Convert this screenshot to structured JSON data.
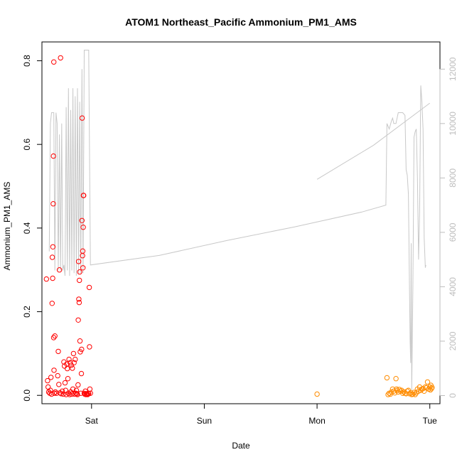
{
  "chart_data": {
    "type": "scatter",
    "title": "ATOM1 Northeast_Pacific Ammonium_PM1_AMS",
    "xlabel": "Date",
    "ylabel": "Ammonium_PM1_AMS",
    "x_ticks": [
      {
        "label": "Sat",
        "value": 1.0
      },
      {
        "label": "Sun",
        "value": 2.0
      },
      {
        "label": "Mon",
        "value": 3.0
      },
      {
        "label": "Tue",
        "value": 4.0
      }
    ],
    "xlim": [
      0.56,
      4.09
    ],
    "ylim": [
      -0.02,
      0.845
    ],
    "y_ticks": [
      0.0,
      0.2,
      0.4,
      0.6,
      0.8
    ],
    "y2lim": [
      -300,
      13000
    ],
    "y2_ticks": [
      0,
      2000,
      4000,
      6000,
      8000,
      10000,
      12000
    ],
    "grid": false,
    "series": [
      {
        "color": "#ff0000",
        "points": [
          [
            0.6,
            0.278
          ],
          [
            0.61,
            0.035
          ],
          [
            0.615,
            0.02
          ],
          [
            0.62,
            0.008
          ],
          [
            0.63,
            0.005
          ],
          [
            0.635,
            0.012
          ],
          [
            0.64,
            0.043
          ],
          [
            0.645,
            0.003
          ],
          [
            0.65,
            0.22
          ],
          [
            0.652,
            0.33
          ],
          [
            0.655,
            0.28
          ],
          [
            0.657,
            0.355
          ],
          [
            0.66,
            0.458
          ],
          [
            0.662,
            0.572
          ],
          [
            0.664,
            0.138
          ],
          [
            0.665,
            0.797
          ],
          [
            0.667,
            0.06
          ],
          [
            0.67,
            0.005
          ],
          [
            0.675,
            0.142
          ],
          [
            0.68,
            0.008
          ],
          [
            0.69,
            0.005
          ],
          [
            0.7,
            0.047
          ],
          [
            0.705,
            0.105
          ],
          [
            0.71,
            0.026
          ],
          [
            0.715,
            0.3
          ],
          [
            0.72,
            0.006
          ],
          [
            0.725,
            0.807
          ],
          [
            0.73,
            0.004
          ],
          [
            0.74,
            0.01
          ],
          [
            0.75,
            0.003
          ],
          [
            0.755,
            0.08
          ],
          [
            0.76,
            0.07
          ],
          [
            0.765,
            0.03
          ],
          [
            0.77,
            0.012
          ],
          [
            0.775,
            0.002
          ],
          [
            0.78,
            0.075
          ],
          [
            0.785,
            0.064
          ],
          [
            0.79,
            0.04
          ],
          [
            0.795,
            0.005
          ],
          [
            0.8,
            0.086
          ],
          [
            0.805,
            0.002
          ],
          [
            0.81,
            0.078
          ],
          [
            0.815,
            0.008
          ],
          [
            0.82,
            0.072
          ],
          [
            0.825,
            0.003
          ],
          [
            0.83,
            0.065
          ],
          [
            0.835,
            0.015
          ],
          [
            0.84,
            0.1
          ],
          [
            0.845,
            0.078
          ],
          [
            0.85,
            0.003
          ],
          [
            0.855,
            0.086
          ],
          [
            0.86,
            0.005
          ],
          [
            0.865,
            0.012
          ],
          [
            0.87,
            0.004
          ],
          [
            0.875,
            0.002
          ],
          [
            0.88,
            0.025
          ],
          [
            0.882,
            0.18
          ],
          [
            0.885,
            0.32
          ],
          [
            0.887,
            0.23
          ],
          [
            0.89,
            0.222
          ],
          [
            0.892,
            0.275
          ],
          [
            0.895,
            0.295
          ],
          [
            0.897,
            0.13
          ],
          [
            0.9,
            0.104
          ],
          [
            0.905,
            0.005
          ],
          [
            0.91,
            0.052
          ],
          [
            0.912,
            0.11
          ],
          [
            0.915,
            0.418
          ],
          [
            0.917,
            0.663
          ],
          [
            0.92,
            0.334
          ],
          [
            0.922,
            0.345
          ],
          [
            0.924,
            0.305
          ],
          [
            0.926,
            0.402
          ],
          [
            0.928,
            0.478
          ],
          [
            0.93,
            0.478
          ],
          [
            0.935,
            0.005
          ],
          [
            0.94,
            0.003
          ],
          [
            0.945,
            0.01
          ],
          [
            0.95,
            0.002
          ],
          [
            0.955,
            0.004
          ],
          [
            0.96,
            0.003
          ],
          [
            0.965,
            0.002
          ],
          [
            0.97,
            0.005
          ],
          [
            0.975,
            0.004
          ],
          [
            0.98,
            0.258
          ],
          [
            0.982,
            0.116
          ],
          [
            0.985,
            0.015
          ],
          [
            0.99,
            0.005
          ]
        ]
      },
      {
        "color": "#ff8c00",
        "points": [
          [
            3.0,
            0.003
          ],
          [
            3.62,
            0.042
          ],
          [
            3.63,
            0.002
          ],
          [
            3.64,
            0.005
          ],
          [
            3.65,
            0.003
          ],
          [
            3.66,
            0.008
          ],
          [
            3.67,
            0.015
          ],
          [
            3.68,
            0.01
          ],
          [
            3.69,
            0.006
          ],
          [
            3.7,
            0.04
          ],
          [
            3.705,
            0.015
          ],
          [
            3.71,
            0.012
          ],
          [
            3.72,
            0.008
          ],
          [
            3.73,
            0.014
          ],
          [
            3.74,
            0.01
          ],
          [
            3.75,
            0.012
          ],
          [
            3.76,
            0.005
          ],
          [
            3.77,
            0.008
          ],
          [
            3.78,
            0.005
          ],
          [
            3.79,
            0.004
          ],
          [
            3.8,
            0.01
          ],
          [
            3.81,
            0.012
          ],
          [
            3.82,
            0.004
          ],
          [
            3.83,
            0.006
          ],
          [
            3.84,
            0.002
          ],
          [
            3.85,
            0.003
          ],
          [
            3.86,
            0.007
          ],
          [
            3.87,
            0.002
          ],
          [
            3.88,
            0.006
          ],
          [
            3.89,
            0.015
          ],
          [
            3.9,
            0.01
          ],
          [
            3.91,
            0.02
          ],
          [
            3.92,
            0.012
          ],
          [
            3.93,
            0.015
          ],
          [
            3.94,
            0.016
          ],
          [
            3.95,
            0.01
          ],
          [
            3.96,
            0.02
          ],
          [
            3.97,
            0.018
          ],
          [
            3.98,
            0.032
          ],
          [
            3.99,
            0.015
          ],
          [
            4.0,
            0.02
          ],
          [
            4.005,
            0.013
          ],
          [
            4.01,
            0.024
          ],
          [
            4.015,
            0.016
          ],
          [
            4.02,
            0.019
          ]
        ]
      }
    ],
    "secondary_line": {
      "color": "#c8c8c8",
      "segments": [
        [
          [
            0.625,
            5300
          ],
          [
            0.635,
            10000
          ],
          [
            0.645,
            10400
          ],
          [
            0.655,
            10400
          ],
          [
            0.665,
            10400
          ],
          [
            0.675,
            4600
          ],
          [
            0.685,
            10400
          ],
          [
            0.695,
            10000
          ],
          [
            0.705,
            4600
          ],
          [
            0.715,
            9600
          ],
          [
            0.725,
            4600
          ],
          [
            0.735,
            10000
          ],
          [
            0.745,
            4600
          ],
          [
            0.755,
            4800
          ],
          [
            0.765,
            4400
          ],
          [
            0.775,
            10600
          ],
          [
            0.785,
            4600
          ],
          [
            0.795,
            11300
          ],
          [
            0.805,
            4400
          ],
          [
            0.815,
            10500
          ],
          [
            0.825,
            4600
          ],
          [
            0.835,
            11300
          ],
          [
            0.845,
            4500
          ],
          [
            0.855,
            11000
          ],
          [
            0.865,
            4400
          ],
          [
            0.875,
            11300
          ],
          [
            0.885,
            4500
          ],
          [
            0.895,
            10800
          ],
          [
            0.905,
            4500
          ],
          [
            0.915,
            12000
          ],
          [
            0.925,
            4500
          ],
          [
            0.935,
            12700
          ],
          [
            0.945,
            12700
          ],
          [
            0.96,
            12700
          ],
          [
            0.975,
            12700
          ],
          [
            0.99,
            4800
          ],
          [
            1.6,
            5150
          ],
          [
            2.2,
            5700
          ],
          [
            2.8,
            6200
          ],
          [
            3.4,
            6750
          ],
          [
            3.61,
            7000
          ],
          [
            3.62,
            10000
          ],
          [
            3.64,
            9800
          ],
          [
            3.66,
            10100
          ],
          [
            3.67,
            10200
          ],
          [
            3.68,
            10000
          ],
          [
            3.7,
            10000
          ],
          [
            3.72,
            10400
          ],
          [
            3.74,
            10400
          ],
          [
            3.76,
            10400
          ],
          [
            3.78,
            10300
          ],
          [
            3.79,
            8300
          ],
          [
            3.8,
            8100
          ],
          [
            3.81,
            7400
          ],
          [
            3.82,
            3800
          ],
          [
            3.825,
            2000
          ],
          [
            3.83,
            1200
          ],
          [
            3.835,
            5600
          ],
          [
            3.84,
            200
          ],
          [
            3.85,
            4000
          ],
          [
            3.86,
            9500
          ],
          [
            3.87,
            9700
          ],
          [
            3.88,
            9800
          ],
          [
            3.89,
            8000
          ],
          [
            3.9,
            5000
          ],
          [
            3.91,
            6800
          ],
          [
            3.92,
            11400
          ],
          [
            3.93,
            10800
          ],
          [
            3.94,
            9800
          ],
          [
            3.95,
            5800
          ],
          [
            3.96,
            4700
          ],
          [
            3.965,
            4800
          ]
        ],
        [
          [
            3.0,
            7950
          ],
          [
            3.5,
            9200
          ],
          [
            4.0,
            10750
          ]
        ]
      ]
    }
  }
}
